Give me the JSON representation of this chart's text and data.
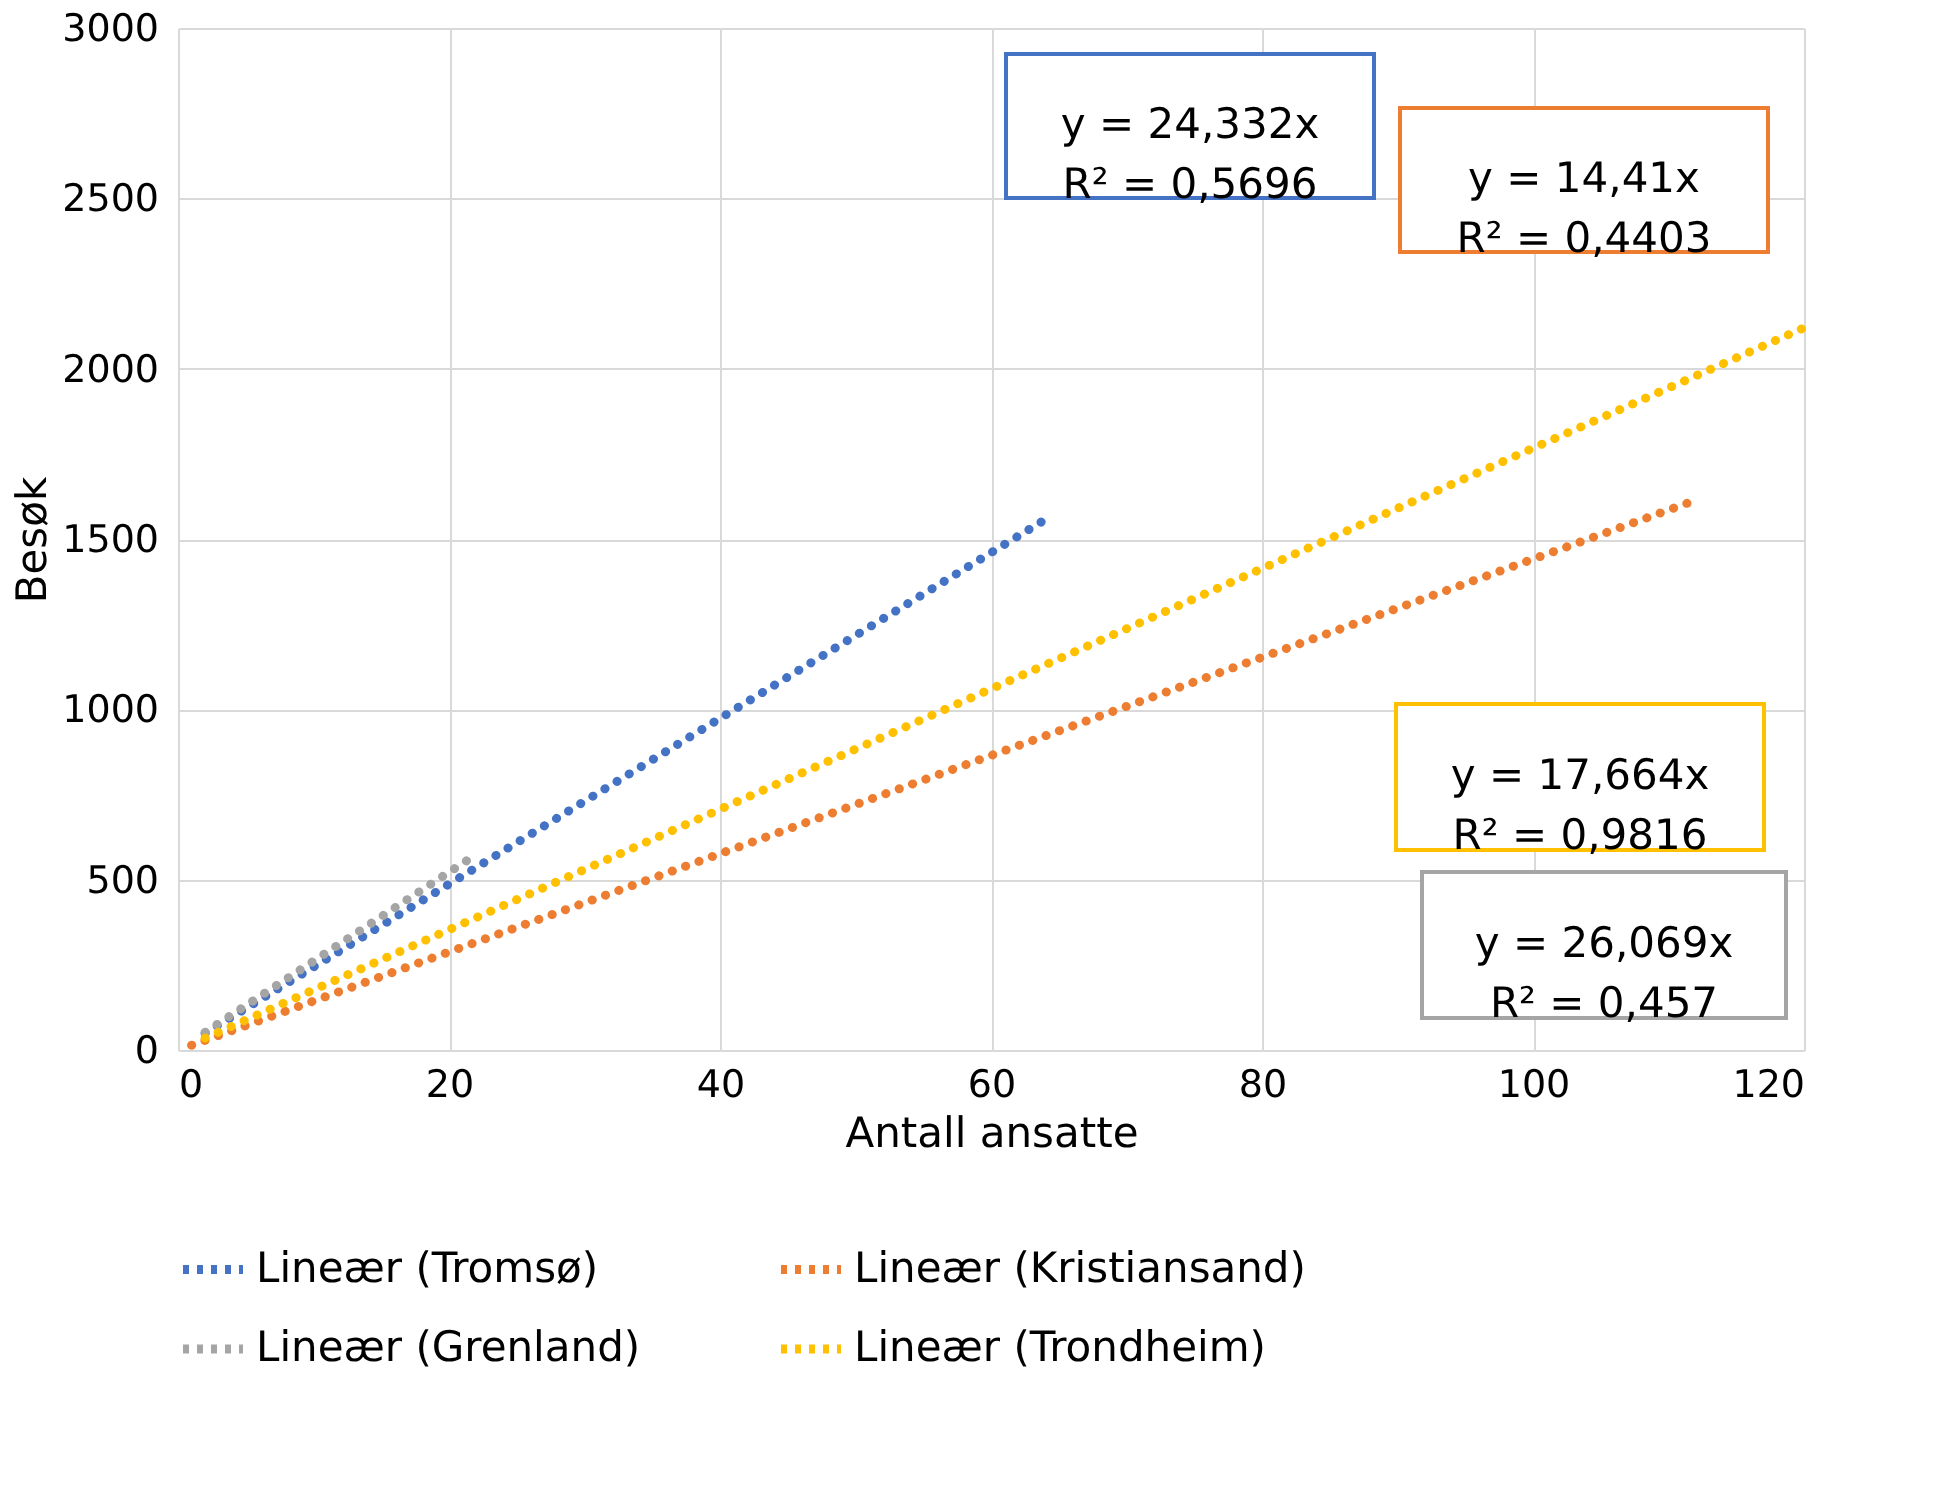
{
  "chart_data": {
    "type": "line",
    "xlabel": "Antall ansatte",
    "ylabel": "Besøk",
    "xlim": [
      0,
      120
    ],
    "xticks": [
      0,
      20,
      40,
      60,
      80,
      100,
      120
    ],
    "ylim": [
      0,
      3000
    ],
    "yticks": [
      0,
      500,
      1000,
      1500,
      2000,
      2500,
      3000
    ],
    "grid": true,
    "legend": "bottom",
    "line_style": "dotted",
    "marker": "none",
    "series": [
      {
        "name": "Lineær (Tromsø)",
        "color": "#4472c4",
        "x": [
          2,
          64
        ],
        "values": [
          49,
          1557
        ]
      },
      {
        "name": "Lineær (Kristiansand)",
        "color": "#ed7d31",
        "x": [
          1,
          112
        ],
        "values": [
          14,
          1614
        ]
      },
      {
        "name": "Lineær (Grenland)",
        "color": "#a5a5a5",
        "x": [
          2,
          22
        ],
        "values": [
          52,
          574
        ]
      },
      {
        "name": "Lineær (Trondheim)",
        "color": "#ffc000",
        "x": [
          2,
          120
        ],
        "values": [
          35,
          2120
        ]
      }
    ],
    "annotations": [
      "y = 24,332x\nR² = 0,5696",
      "y = 14,41x\nR² = 0,4403",
      "y = 26,069x\nR² = 0,457",
      "y = 17,664x\nR² = 0,9816"
    ]
  }
}
